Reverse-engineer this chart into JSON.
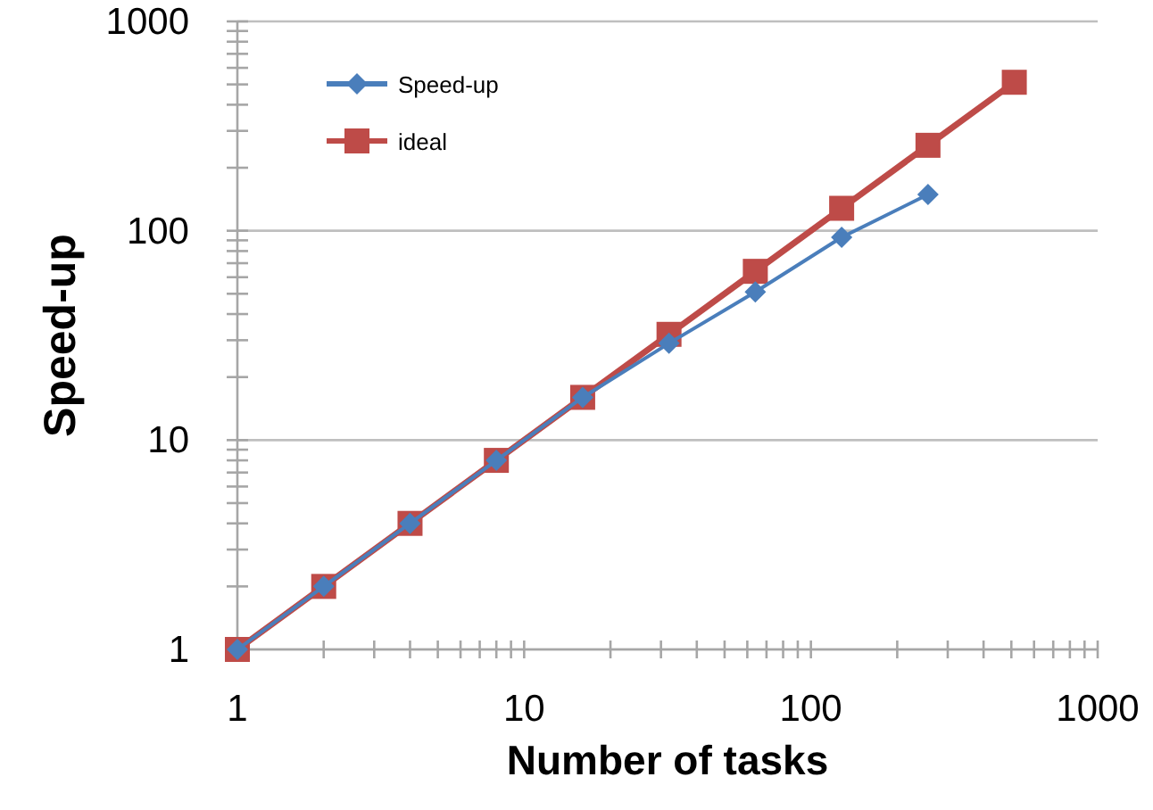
{
  "chart_data": {
    "type": "line",
    "xlabel": "Number of tasks",
    "ylabel": "Speed-up",
    "log": "xy",
    "grid": "y",
    "legend": "top left",
    "xlim": [
      1,
      1000
    ],
    "ylim": [
      1,
      1000
    ],
    "xticks": [
      1,
      {
        "value": 2,
        "label": null
      },
      {
        "value": 3,
        "label": null
      },
      {
        "value": 4,
        "label": null
      },
      {
        "value": 5,
        "label": null
      },
      {
        "value": 6,
        "label": null
      },
      {
        "value": 7,
        "label": null
      },
      {
        "value": 8,
        "label": null
      },
      {
        "value": 9,
        "label": null
      },
      10,
      {
        "value": 20,
        "label": null
      },
      {
        "value": 30,
        "label": null
      },
      {
        "value": 40,
        "label": null
      },
      {
        "value": 50,
        "label": null
      },
      {
        "value": 60,
        "label": null
      },
      {
        "value": 70,
        "label": null
      },
      {
        "value": 80,
        "label": null
      },
      {
        "value": 90,
        "label": null
      },
      100,
      {
        "value": 200,
        "label": null
      },
      {
        "value": 300,
        "label": null
      },
      {
        "value": 400,
        "label": null
      },
      {
        "value": 500,
        "label": null
      },
      {
        "value": 600,
        "label": null
      },
      {
        "value": 700,
        "label": null
      },
      {
        "value": 800,
        "label": null
      },
      {
        "value": 900,
        "label": null
      },
      1000
    ],
    "yticks": [
      1,
      {
        "value": 2,
        "label": null
      },
      {
        "value": 3,
        "label": null
      },
      {
        "value": 4,
        "label": null
      },
      {
        "value": 5,
        "label": null
      },
      {
        "value": 6,
        "label": null
      },
      {
        "value": 7,
        "label": null
      },
      {
        "value": 8,
        "label": null
      },
      {
        "value": 9,
        "label": null
      },
      10,
      {
        "value": 20,
        "label": null
      },
      {
        "value": 30,
        "label": null
      },
      {
        "value": 40,
        "label": null
      },
      {
        "value": 50,
        "label": null
      },
      {
        "value": 60,
        "label": null
      },
      {
        "value": 70,
        "label": null
      },
      {
        "value": 80,
        "label": null
      },
      {
        "value": 90,
        "label": null
      },
      100,
      {
        "value": 200,
        "label": null
      },
      {
        "value": 300,
        "label": null
      },
      {
        "value": 400,
        "label": null
      },
      {
        "value": 500,
        "label": null
      },
      {
        "value": 600,
        "label": null
      },
      {
        "value": 700,
        "label": null
      },
      {
        "value": 800,
        "label": null
      },
      {
        "value": 900,
        "label": null
      },
      1000
    ],
    "series": [
      {
        "name": "Speed-up",
        "color": "#4a7ebb",
        "marker": "diamond",
        "x": [
          1,
          2,
          4,
          8,
          16,
          32,
          64,
          128,
          256
        ],
        "values": [
          1,
          2,
          4,
          8,
          16,
          29,
          51,
          93,
          149
        ]
      },
      {
        "name": "ideal",
        "color": "#be4b48",
        "marker": "square",
        "x": [
          1,
          2,
          4,
          8,
          16,
          32,
          64,
          128,
          256,
          512
        ],
        "values": [
          1,
          2,
          4,
          8,
          16,
          32,
          64,
          128,
          256,
          512
        ]
      }
    ]
  }
}
